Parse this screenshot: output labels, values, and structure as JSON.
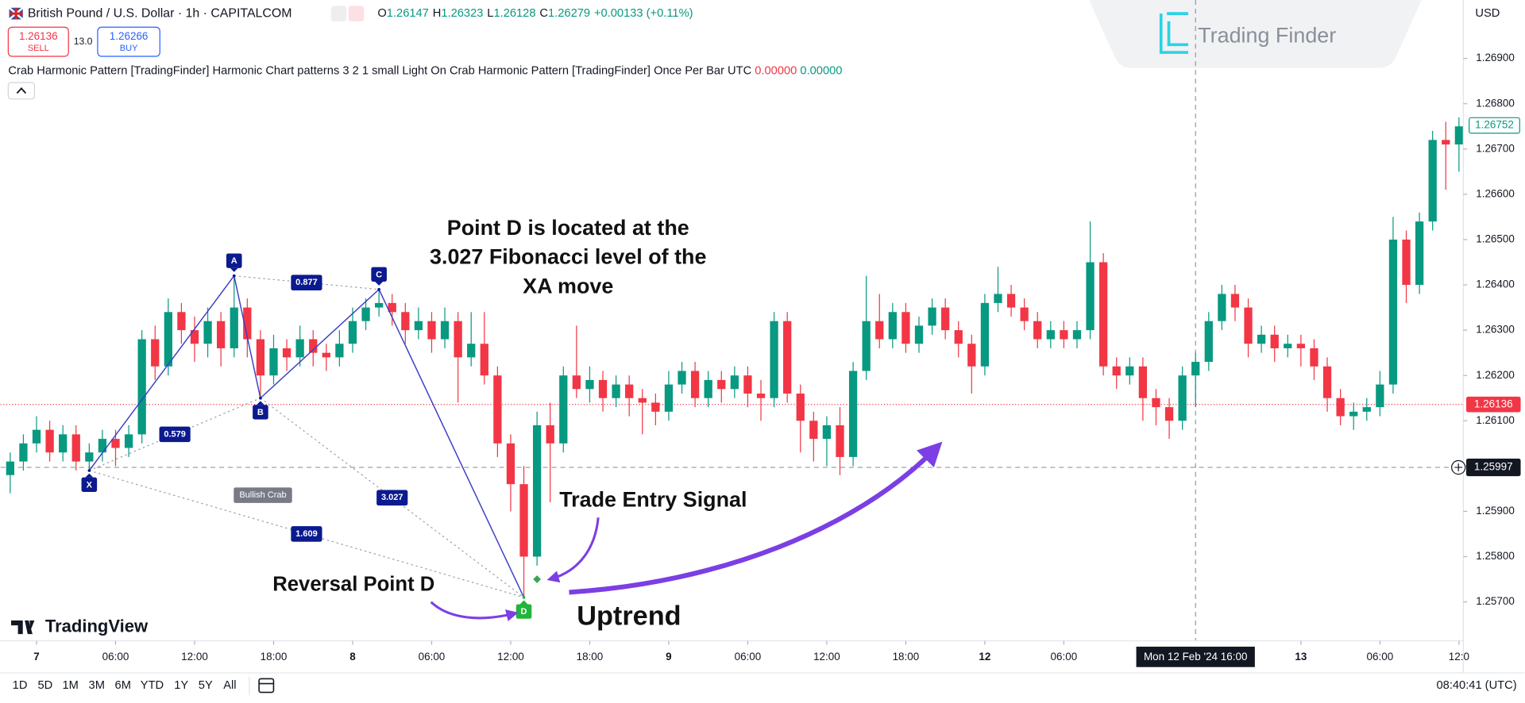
{
  "chart_data": {
    "type": "candlestick",
    "header": {
      "symbol": "British Pound / U.S. Dollar · 1h · CAPITALCOM",
      "ohlc": [
        [
          "O",
          "1.26147"
        ],
        [
          "H",
          "1.26323"
        ],
        [
          "L",
          "1.26128"
        ],
        [
          "C",
          "1.26279"
        ]
      ],
      "change": "+0.00133 (+0.11%)",
      "sell_price": "1.26136",
      "sell_label": "SELL",
      "spread": "13.0",
      "buy_price": "1.26266",
      "buy_label": "BUY",
      "indicator": "Crab Harmonic Pattern [TradingFinder] Harmonic Chart patterns 3 2 1 small Light On Crab Harmonic Pattern [TradingFinder] Once Per Bar UTC",
      "indicator_values": [
        "0.00000",
        "0.00000"
      ],
      "currency": "USD"
    },
    "up_color": "#089981",
    "down_color": "#f23645",
    "xlim": [
      -0.74,
      110.33
    ],
    "ylim": [
      1.25614,
      1.27029
    ],
    "yticks": [
      {
        "value": 1.257,
        "label": "1.25700"
      },
      {
        "value": 1.258,
        "label": "1.25800"
      },
      {
        "value": 1.259,
        "label": "1.25900"
      },
      {
        "value": 1.26,
        "label": "1.26000"
      },
      {
        "value": 1.261,
        "label": "1.26100"
      },
      {
        "value": 1.262,
        "label": "1.26200"
      },
      {
        "value": 1.263,
        "label": "1.26300"
      },
      {
        "value": 1.264,
        "label": "1.26400"
      },
      {
        "value": 1.265,
        "label": "1.26500"
      },
      {
        "value": 1.266,
        "label": "1.26600"
      },
      {
        "value": 1.267,
        "label": "1.26700"
      },
      {
        "value": 1.268,
        "label": "1.26800"
      },
      {
        "value": 1.269,
        "label": "1.26900"
      }
    ],
    "xticks": [
      {
        "value": 2,
        "label": "7"
      },
      {
        "value": 8,
        "label": "06:00"
      },
      {
        "value": 14,
        "label": "12:00"
      },
      {
        "value": 20,
        "label": "18:00"
      },
      {
        "value": 26,
        "label": "8"
      },
      {
        "value": 32,
        "label": "06:00"
      },
      {
        "value": 38,
        "label": "12:00"
      },
      {
        "value": 44,
        "label": "18:00"
      },
      {
        "value": 50,
        "label": "9"
      },
      {
        "value": 56,
        "label": "06:00"
      },
      {
        "value": 62,
        "label": "12:00"
      },
      {
        "value": 68,
        "label": "18:00"
      },
      {
        "value": 74,
        "label": "12"
      },
      {
        "value": 80,
        "label": "06:00"
      },
      {
        "value": 98,
        "label": "13"
      },
      {
        "value": 104,
        "label": "06:00"
      },
      {
        "value": 110,
        "label": "12:0"
      }
    ],
    "candles": [
      [
        1.2598,
        1.2603,
        1.2594,
        1.2601
      ],
      [
        1.2601,
        1.2607,
        1.2599,
        1.2605
      ],
      [
        1.2605,
        1.2611,
        1.2603,
        1.2608
      ],
      [
        1.2608,
        1.261,
        1.2601,
        1.2603
      ],
      [
        1.2603,
        1.2609,
        1.2601,
        1.2607
      ],
      [
        1.2607,
        1.2609,
        1.2599,
        1.2601
      ],
      [
        1.2601,
        1.2605,
        1.2599,
        1.2603
      ],
      [
        1.2603,
        1.2608,
        1.2601,
        1.2606
      ],
      [
        1.2606,
        1.2608,
        1.26,
        1.2604
      ],
      [
        1.2604,
        1.2609,
        1.2602,
        1.2607
      ],
      [
        1.2607,
        1.263,
        1.2605,
        1.2628
      ],
      [
        1.2628,
        1.2631,
        1.2619,
        1.2622
      ],
      [
        1.2622,
        1.2637,
        1.262,
        1.2634
      ],
      [
        1.2634,
        1.2636,
        1.2627,
        1.263
      ],
      [
        1.263,
        1.2633,
        1.2623,
        1.2627
      ],
      [
        1.2627,
        1.2635,
        1.2624,
        1.2632
      ],
      [
        1.2632,
        1.2634,
        1.2622,
        1.2626
      ],
      [
        1.2626,
        1.2642,
        1.2624,
        1.2635
      ],
      [
        1.2635,
        1.2637,
        1.2624,
        1.2628
      ],
      [
        1.2628,
        1.263,
        1.2615,
        1.262
      ],
      [
        1.262,
        1.2629,
        1.2618,
        1.2626
      ],
      [
        1.2626,
        1.2628,
        1.2621,
        1.2624
      ],
      [
        1.2624,
        1.2631,
        1.2622,
        1.2628
      ],
      [
        1.2628,
        1.263,
        1.2622,
        1.2625
      ],
      [
        1.2625,
        1.2627,
        1.2621,
        1.2624
      ],
      [
        1.2624,
        1.263,
        1.2622,
        1.2627
      ],
      [
        1.2627,
        1.2635,
        1.2625,
        1.2632
      ],
      [
        1.2632,
        1.2637,
        1.263,
        1.2635
      ],
      [
        1.2635,
        1.2639,
        1.2633,
        1.2636
      ],
      [
        1.2636,
        1.2638,
        1.2631,
        1.2634
      ],
      [
        1.2634,
        1.2636,
        1.2627,
        1.263
      ],
      [
        1.263,
        1.2635,
        1.2628,
        1.2632
      ],
      [
        1.2632,
        1.2634,
        1.2625,
        1.2628
      ],
      [
        1.2628,
        1.2635,
        1.2626,
        1.2632
      ],
      [
        1.2632,
        1.2634,
        1.2614,
        1.2624
      ],
      [
        1.2624,
        1.2634,
        1.2622,
        1.2627
      ],
      [
        1.2627,
        1.2634,
        1.2618,
        1.262
      ],
      [
        1.262,
        1.2622,
        1.2602,
        1.2605
      ],
      [
        1.2605,
        1.2607,
        1.259,
        1.2596
      ],
      [
        1.2596,
        1.26,
        1.2571,
        1.258
      ],
      [
        1.258,
        1.2612,
        1.2578,
        1.2609
      ],
      [
        1.2609,
        1.2614,
        1.2592,
        1.2605
      ],
      [
        1.2605,
        1.2622,
        1.2603,
        1.262
      ],
      [
        1.262,
        1.2631,
        1.2615,
        1.2617
      ],
      [
        1.2617,
        1.2622,
        1.2614,
        1.2619
      ],
      [
        1.2619,
        1.2621,
        1.2612,
        1.2615
      ],
      [
        1.2615,
        1.262,
        1.2613,
        1.2618
      ],
      [
        1.2618,
        1.262,
        1.2611,
        1.2615
      ],
      [
        1.2615,
        1.2617,
        1.2607,
        1.2614
      ],
      [
        1.2614,
        1.2616,
        1.2609,
        1.2612
      ],
      [
        1.2612,
        1.2621,
        1.261,
        1.2618
      ],
      [
        1.2618,
        1.2623,
        1.2616,
        1.2621
      ],
      [
        1.2621,
        1.2623,
        1.2613,
        1.2615
      ],
      [
        1.2615,
        1.2621,
        1.2613,
        1.2619
      ],
      [
        1.2619,
        1.2621,
        1.2614,
        1.2617
      ],
      [
        1.2617,
        1.2622,
        1.2615,
        1.262
      ],
      [
        1.262,
        1.2622,
        1.2613,
        1.2616
      ],
      [
        1.2616,
        1.2619,
        1.261,
        1.2615
      ],
      [
        1.2615,
        1.2634,
        1.2613,
        1.2632
      ],
      [
        1.2632,
        1.2634,
        1.2614,
        1.2616
      ],
      [
        1.2616,
        1.2618,
        1.2603,
        1.261
      ],
      [
        1.261,
        1.2612,
        1.2601,
        1.2606
      ],
      [
        1.2606,
        1.2611,
        1.26,
        1.2609
      ],
      [
        1.2609,
        1.2613,
        1.2598,
        1.2602
      ],
      [
        1.2602,
        1.2623,
        1.26,
        1.2621
      ],
      [
        1.2621,
        1.2642,
        1.2619,
        1.2632
      ],
      [
        1.2632,
        1.2638,
        1.2626,
        1.2628
      ],
      [
        1.2628,
        1.2636,
        1.2626,
        1.2634
      ],
      [
        1.2634,
        1.2636,
        1.2625,
        1.2627
      ],
      [
        1.2627,
        1.2633,
        1.2625,
        1.2631
      ],
      [
        1.2631,
        1.2637,
        1.2629,
        1.2635
      ],
      [
        1.2635,
        1.2637,
        1.2628,
        1.263
      ],
      [
        1.263,
        1.2632,
        1.2624,
        1.2627
      ],
      [
        1.2627,
        1.2629,
        1.2616,
        1.2622
      ],
      [
        1.2622,
        1.2638,
        1.262,
        1.2636
      ],
      [
        1.2636,
        1.2644,
        1.2634,
        1.2638
      ],
      [
        1.2638,
        1.264,
        1.2633,
        1.2635
      ],
      [
        1.2635,
        1.2637,
        1.263,
        1.2632
      ],
      [
        1.2632,
        1.2634,
        1.2626,
        1.2628
      ],
      [
        1.2628,
        1.2632,
        1.2626,
        1.263
      ],
      [
        1.263,
        1.2632,
        1.2626,
        1.2628
      ],
      [
        1.2628,
        1.2632,
        1.2626,
        1.263
      ],
      [
        1.263,
        1.2654,
        1.2628,
        1.2645
      ],
      [
        1.2645,
        1.2647,
        1.262,
        1.2622
      ],
      [
        1.2622,
        1.2624,
        1.2617,
        1.262
      ],
      [
        1.262,
        1.2624,
        1.2618,
        1.2622
      ],
      [
        1.2622,
        1.2624,
        1.261,
        1.2615
      ],
      [
        1.2615,
        1.2617,
        1.2609,
        1.2613
      ],
      [
        1.2613,
        1.2615,
        1.2606,
        1.261
      ],
      [
        1.261,
        1.2622,
        1.2608,
        1.262
      ],
      [
        1.262,
        1.2625,
        1.2613,
        1.2623
      ],
      [
        1.2623,
        1.2634,
        1.2621,
        1.2632
      ],
      [
        1.2632,
        1.264,
        1.263,
        1.2638
      ],
      [
        1.2638,
        1.264,
        1.2632,
        1.2635
      ],
      [
        1.2635,
        1.2637,
        1.2624,
        1.2627
      ],
      [
        1.2627,
        1.2631,
        1.2625,
        1.2629
      ],
      [
        1.2629,
        1.2631,
        1.2623,
        1.2626
      ],
      [
        1.2626,
        1.2629,
        1.2624,
        1.2627
      ],
      [
        1.2627,
        1.2629,
        1.2622,
        1.2626
      ],
      [
        1.2626,
        1.2628,
        1.2619,
        1.2622
      ],
      [
        1.2622,
        1.2624,
        1.2612,
        1.2615
      ],
      [
        1.2615,
        1.2617,
        1.2609,
        1.2611
      ],
      [
        1.2611,
        1.2614,
        1.2608,
        1.2612
      ],
      [
        1.2612,
        1.2615,
        1.261,
        1.2613
      ],
      [
        1.2613,
        1.2621,
        1.2611,
        1.2618
      ],
      [
        1.2618,
        1.2655,
        1.2616,
        1.265
      ],
      [
        1.265,
        1.2652,
        1.2636,
        1.264
      ],
      [
        1.264,
        1.2656,
        1.2638,
        1.2654
      ],
      [
        1.2654,
        1.2674,
        1.2652,
        1.2672
      ],
      [
        1.2672,
        1.2676,
        1.2661,
        1.2671
      ],
      [
        1.2671,
        1.2677,
        1.2665,
        1.2675
      ]
    ],
    "pattern": {
      "name": "Bullish Crab",
      "color": "#3b3fc4",
      "points": [
        {
          "label": "X",
          "index": 6,
          "price": 1.2599
        },
        {
          "label": "A",
          "index": 17,
          "price": 1.2642
        },
        {
          "label": "B",
          "index": 19,
          "price": 1.2615
        },
        {
          "label": "C",
          "index": 28,
          "price": 1.2639
        },
        {
          "label": "D",
          "index": 39,
          "price": 1.2571
        }
      ],
      "ratios": [
        0.579,
        0.877,
        3.027,
        1.609
      ],
      "entry": {
        "index": 40,
        "price": 1.2575
      }
    },
    "last_price": 1.26752,
    "bid_price": 1.26136,
    "crosshair": {
      "index": 90,
      "price": 1.25997,
      "label": "Mon 12 Feb '24 16:00"
    },
    "annotations": {
      "fib_note": [
        "Point D is located at the",
        "3.027 Fibonacci level of the",
        "XA move"
      ],
      "entry": "Trade Entry Signal",
      "reversal": "Reversal Point D",
      "trend": "Uptrend"
    },
    "branding": {
      "tradingview": "TradingView",
      "tradingfinder": "Trading Finder"
    },
    "toolbar": {
      "ranges": [
        "1D",
        "5D",
        "1M",
        "3M",
        "6M",
        "YTD",
        "1Y",
        "5Y",
        "All"
      ],
      "clock": "08:40:41 (UTC)"
    }
  }
}
